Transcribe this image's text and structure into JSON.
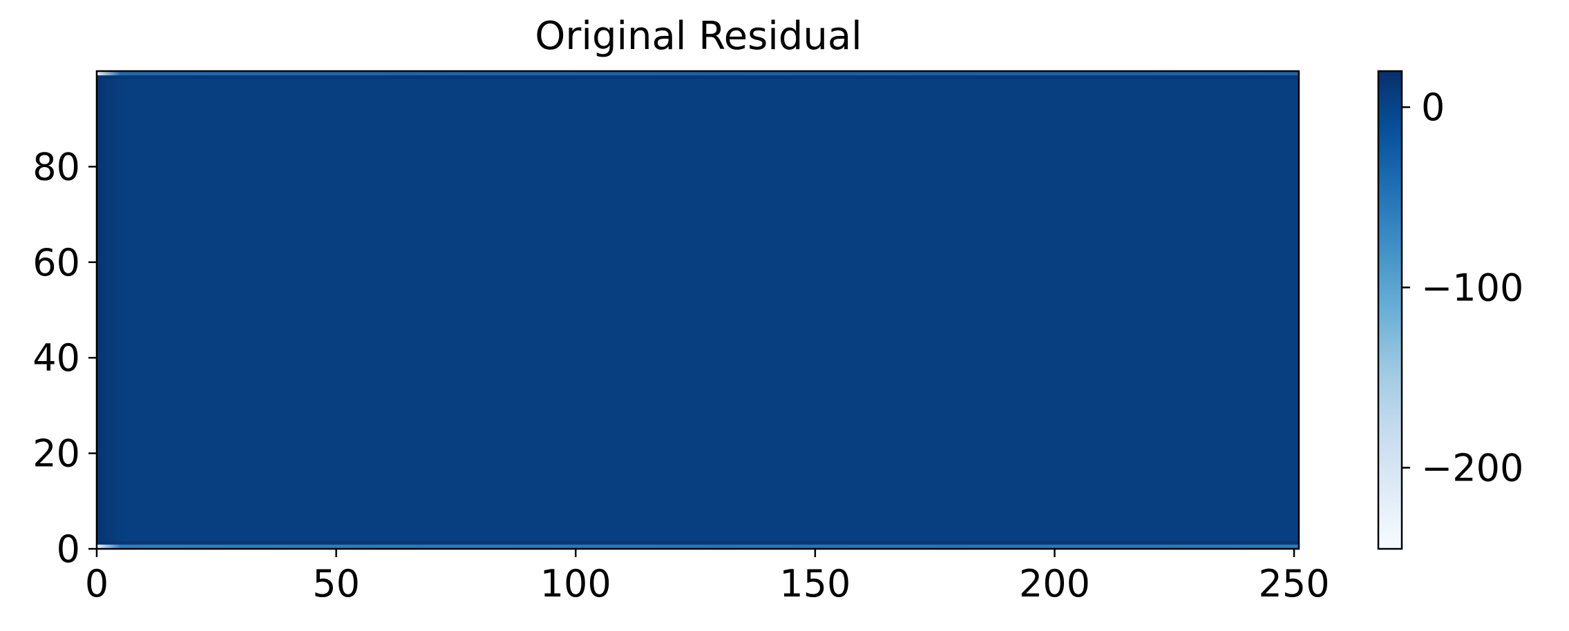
{
  "chart_data": {
    "type": "heatmap",
    "title": "Original Residual",
    "xlabel": "",
    "ylabel": "",
    "x_range": [
      0,
      251
    ],
    "y_range": [
      0,
      100
    ],
    "x_ticks": [
      {
        "value": 0,
        "label": "0"
      },
      {
        "value": 50,
        "label": "50"
      },
      {
        "value": 100,
        "label": "100"
      },
      {
        "value": 150,
        "label": "150"
      },
      {
        "value": 200,
        "label": "200"
      },
      {
        "value": 250,
        "label": "250"
      }
    ],
    "y_ticks": [
      {
        "value": 0,
        "label": "0"
      },
      {
        "value": 20,
        "label": "20"
      },
      {
        "value": 40,
        "label": "40"
      },
      {
        "value": 60,
        "label": "60"
      },
      {
        "value": 80,
        "label": "80"
      }
    ],
    "colormap": "Blues",
    "color_range": [
      -245,
      20
    ],
    "colorbar_ticks": [
      {
        "value": 0,
        "label": "0"
      },
      {
        "value": -100,
        "label": "−100"
      },
      {
        "value": -200,
        "label": "−200"
      }
    ],
    "field": {
      "interior_value": 5,
      "left_edge_value": 15,
      "top_edge_value": -40,
      "bottom_edge_value": -60,
      "edge_corner_value": -230
    },
    "grid": false
  }
}
